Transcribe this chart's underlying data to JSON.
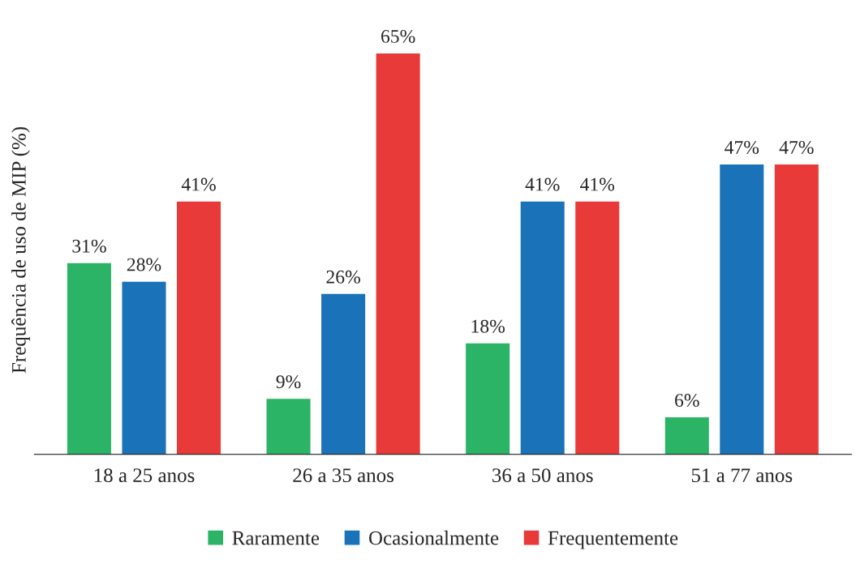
{
  "chart_data": {
    "type": "bar",
    "ylabel": "Frequência de uso de MIP (%)",
    "categories": [
      "18 a 25 anos",
      "26 a 35 anos",
      "36 a 50 anos",
      "51 a 77 anos"
    ],
    "series": [
      {
        "name": "Raramente",
        "color": "#2bb366",
        "values": [
          31,
          9,
          18,
          6
        ],
        "value_labels": [
          "31%",
          "9%",
          "18%",
          "6%"
        ]
      },
      {
        "name": "Ocasionalmente",
        "color": "#1a72b8",
        "values": [
          28,
          26,
          41,
          47
        ],
        "value_labels": [
          "28%",
          "26%",
          "41%",
          "47%"
        ]
      },
      {
        "name": "Frequentemente",
        "color": "#e93a3a",
        "values": [
          41,
          65,
          41,
          47
        ],
        "value_labels": [
          "41%",
          "65%",
          "41%",
          "47%"
        ]
      }
    ],
    "legend": "bottom",
    "grid": false
  }
}
